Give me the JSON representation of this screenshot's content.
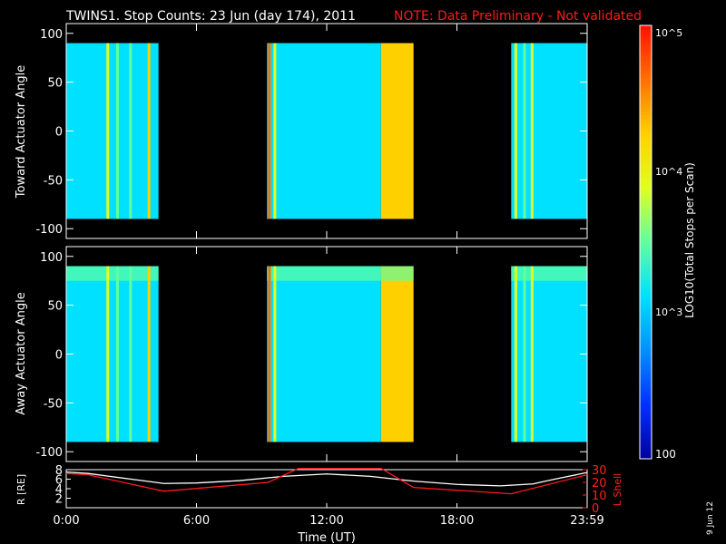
{
  "title": {
    "main": "TWINS1. Stop Counts: 23 Jun (day 174), 2011",
    "note": "NOTE: Data Preliminary - Not validated",
    "note_color": "#ff1a1a"
  },
  "date_stamp": "9 Jun 12",
  "colorbar": {
    "label": "LOG10(Total Stops per Scan)",
    "tick_labels": [
      "10^5",
      "10^4",
      "10^3",
      "100"
    ],
    "colormap": [
      "#0000a0",
      "#0030ff",
      "#0090ff",
      "#00e0ff",
      "#60ffa0",
      "#e0ff20",
      "#ffd000",
      "#ff7000",
      "#ff1000"
    ]
  },
  "chart_data": [
    {
      "type": "heatmap",
      "ylabel": "Toward Actuator Angle",
      "ylim": [
        -110,
        110
      ],
      "y_ticks": [
        100,
        50,
        0,
        -50,
        -100
      ],
      "x_range_hours": [
        0,
        24
      ],
      "data_y_range": [
        -90,
        90
      ],
      "coverage_hours": [
        [
          0.0,
          4.25
        ],
        [
          9.25,
          16.0
        ],
        [
          20.5,
          24.0
        ]
      ],
      "value_bands": [
        {
          "hours": [
            0.0,
            4.25
          ],
          "level": 0.32
        },
        {
          "hours": [
            9.25,
            14.5
          ],
          "level": 0.36
        },
        {
          "hours": [
            14.5,
            16.0
          ],
          "level": 0.78
        },
        {
          "hours": [
            20.5,
            24.0
          ],
          "level": 0.33
        }
      ],
      "stripes": [
        {
          "hour": 1.85,
          "level": 0.62
        },
        {
          "hour": 2.3,
          "level": 0.56
        },
        {
          "hour": 2.9,
          "level": 0.5
        },
        {
          "hour": 3.75,
          "level": 0.7
        },
        {
          "hour": 9.3,
          "level": 0.9
        },
        {
          "hour": 9.55,
          "level": 0.6
        },
        {
          "hour": 20.65,
          "level": 0.65
        },
        {
          "hour": 21.05,
          "level": 0.55
        },
        {
          "hour": 21.4,
          "level": 0.6
        }
      ]
    },
    {
      "type": "heatmap",
      "ylabel": "Away Actuator Angle",
      "ylim": [
        -110,
        110
      ],
      "y_ticks": [
        100,
        50,
        0,
        -50,
        -100
      ],
      "x_range_hours": [
        0,
        24
      ],
      "data_y_range": [
        -90,
        90
      ],
      "coverage_hours": [
        [
          0.0,
          4.25
        ],
        [
          9.25,
          16.0
        ],
        [
          20.5,
          24.0
        ]
      ],
      "value_bands": [
        {
          "hours": [
            0.0,
            4.25
          ],
          "level": 0.32
        },
        {
          "hours": [
            9.25,
            14.5
          ],
          "level": 0.38
        },
        {
          "hours": [
            14.5,
            16.0
          ],
          "level": 0.8
        },
        {
          "hours": [
            20.5,
            24.0
          ],
          "level": 0.33
        }
      ],
      "high_angle_band": {
        "angles": [
          75,
          90
        ],
        "level": 0.55
      },
      "stripes": [
        {
          "hour": 1.85,
          "level": 0.62
        },
        {
          "hour": 2.3,
          "level": 0.56
        },
        {
          "hour": 2.9,
          "level": 0.5
        },
        {
          "hour": 3.75,
          "level": 0.72
        },
        {
          "hour": 9.3,
          "level": 0.92
        },
        {
          "hour": 9.55,
          "level": 0.62
        },
        {
          "hour": 20.65,
          "level": 0.65
        },
        {
          "hour": 21.05,
          "level": 0.55
        },
        {
          "hour": 21.4,
          "level": 0.6
        }
      ]
    },
    {
      "type": "line",
      "xlabel": "Time (UT)",
      "x_tick_labels": [
        "0:00",
        "6:00",
        "12:00",
        "18:00",
        "23:59"
      ],
      "x_tick_hours": [
        0,
        6,
        12,
        18,
        24
      ],
      "ylabel_left": "R [RE]",
      "ylim_left": [
        0,
        8
      ],
      "y_ticks_left": [
        2,
        4,
        6,
        8
      ],
      "ylabel_right": "L Shell",
      "ylim_right": [
        0,
        30
      ],
      "y_ticks_right": [
        0,
        10,
        20,
        30
      ],
      "right_axis_color": "#ff2020",
      "series": [
        {
          "color": "#ffffff",
          "axis": "left",
          "x": [
            0,
            1,
            2,
            3,
            4.5,
            6,
            8,
            10,
            12,
            14,
            16,
            18,
            20,
            21.5,
            22.5,
            24
          ],
          "y": [
            7.5,
            7.2,
            6.6,
            6.0,
            5.1,
            5.2,
            5.7,
            6.6,
            7.1,
            6.6,
            5.6,
            4.9,
            4.6,
            5.0,
            6.0,
            7.4
          ]
        },
        {
          "color": "#ff1a1a",
          "axis": "right",
          "x": [
            0,
            1,
            4.5,
            9.3,
            10.7,
            14.5,
            16,
            20.5,
            24
          ],
          "y": [
            27,
            26,
            13,
            20,
            31,
            31,
            16,
            11,
            26
          ]
        }
      ]
    }
  ]
}
